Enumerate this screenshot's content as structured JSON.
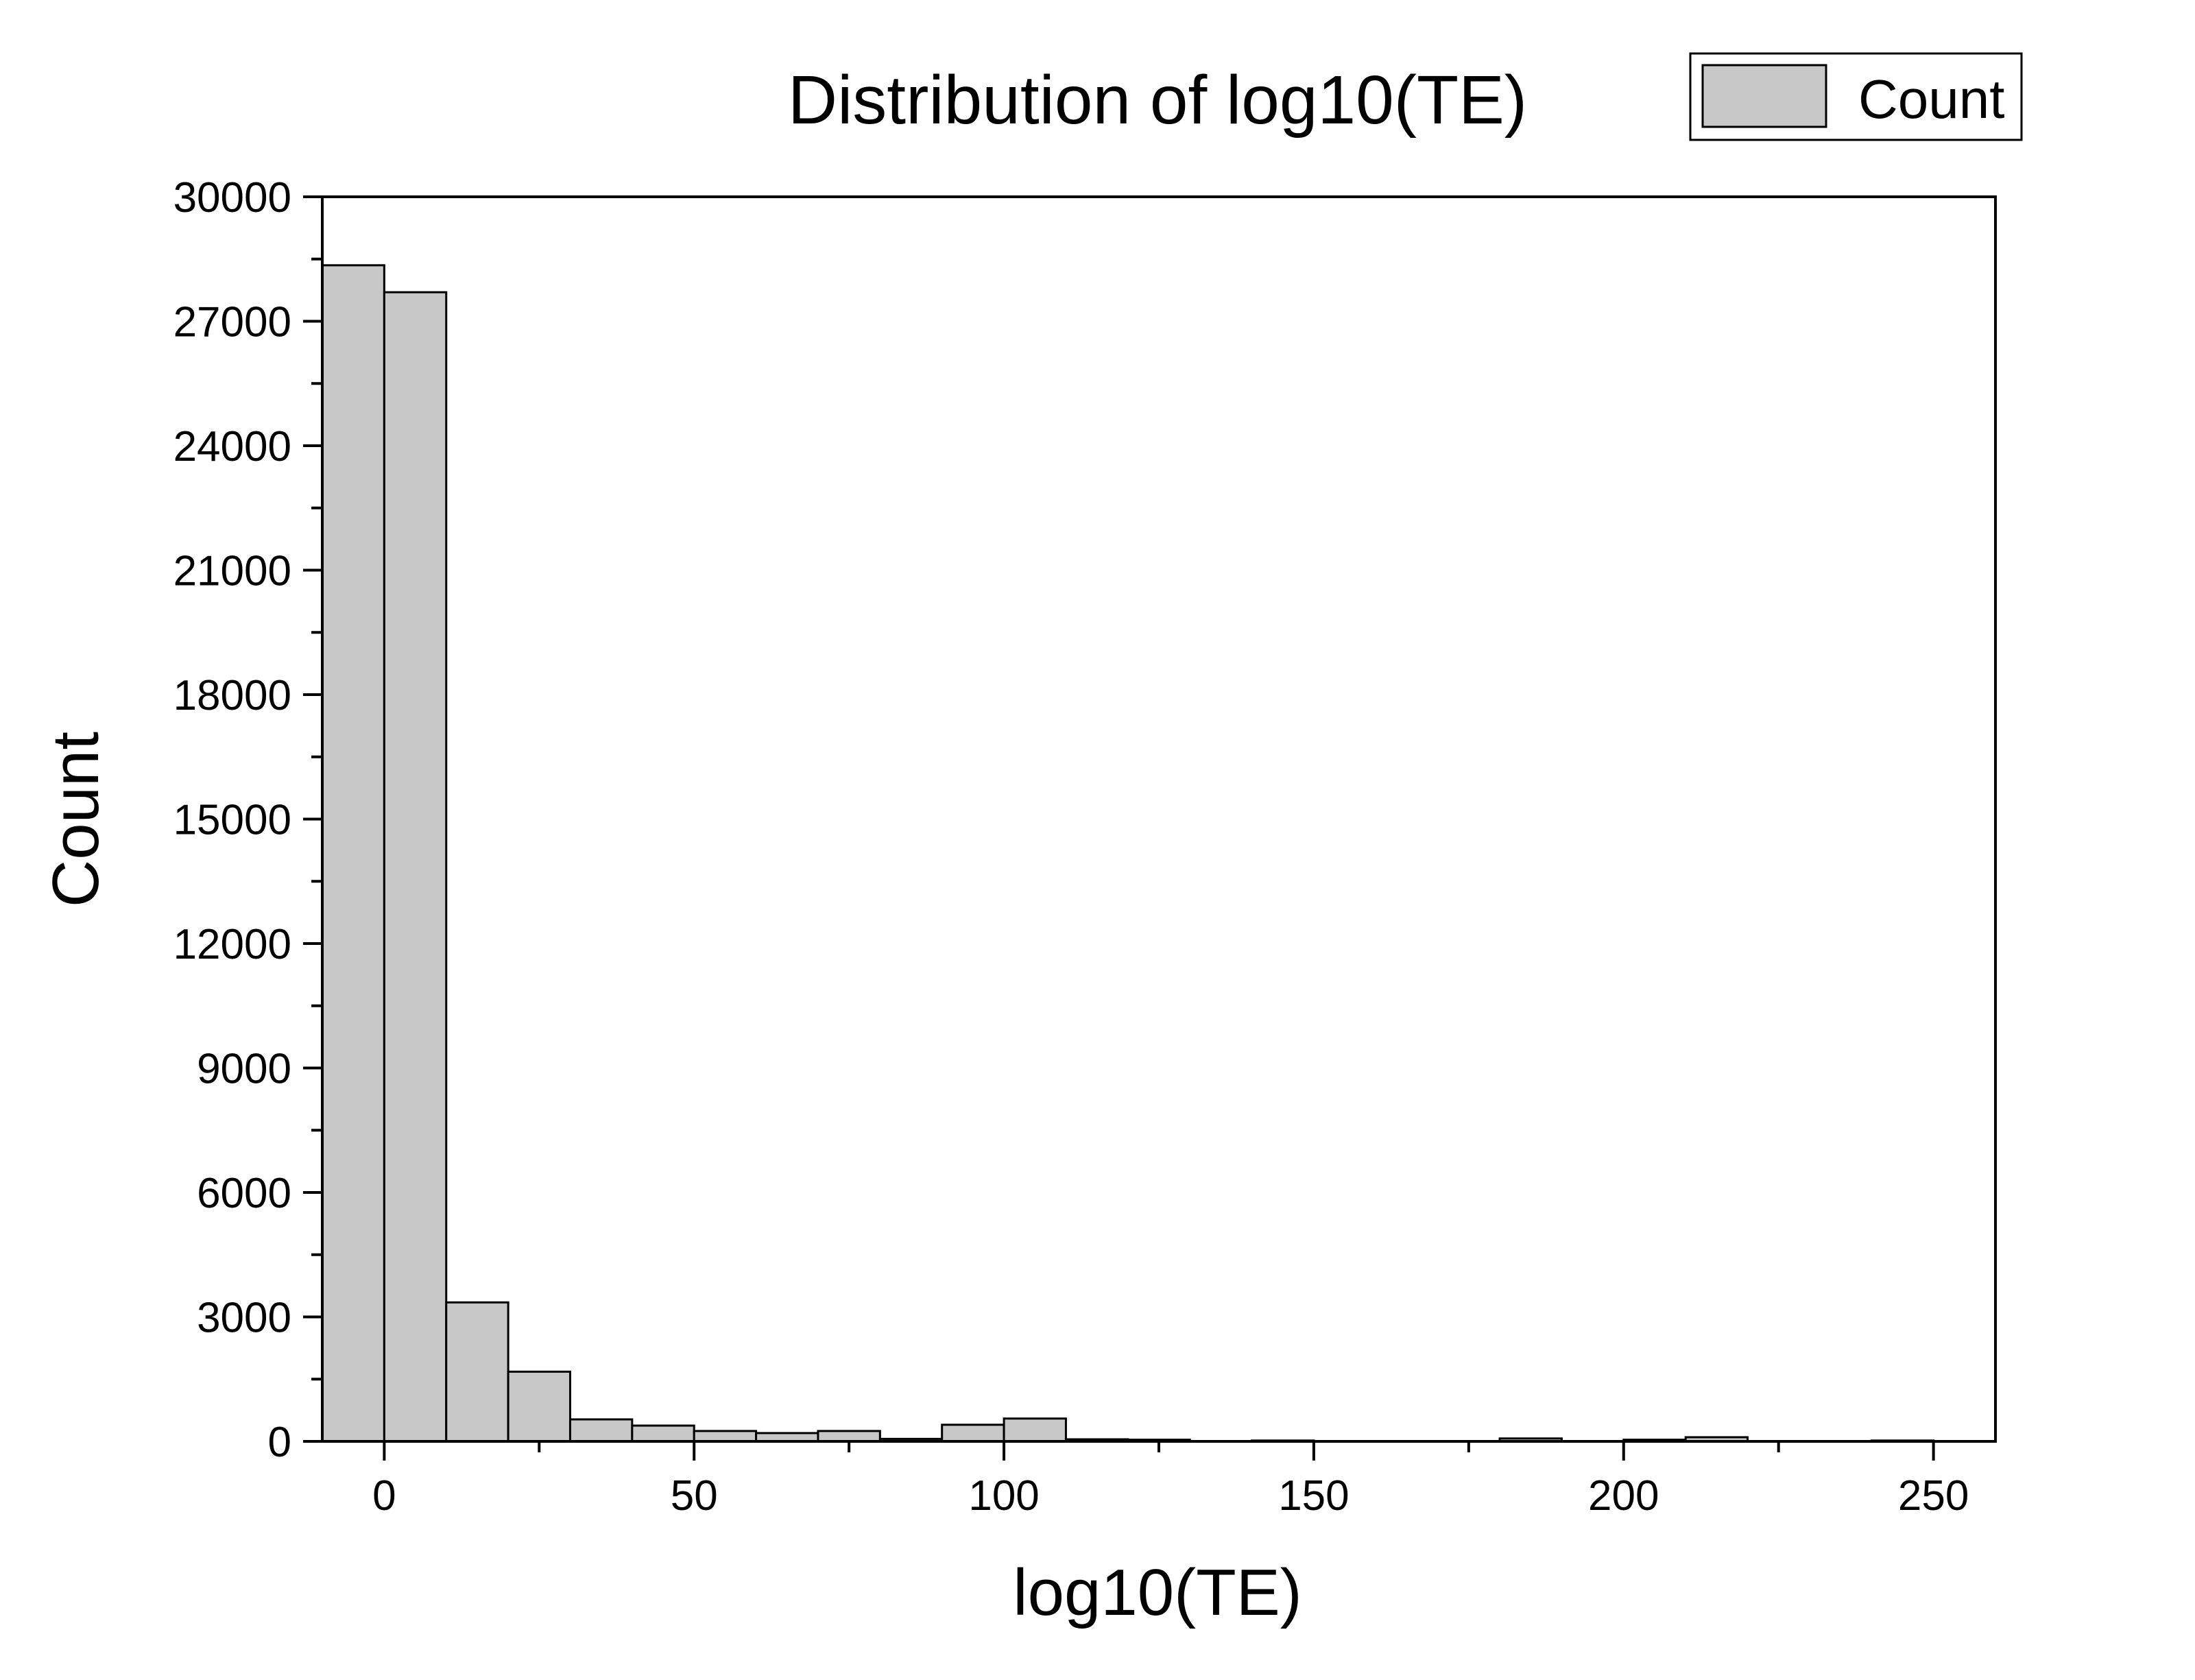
{
  "chart_data": {
    "type": "bar",
    "title": "Distribution of log10(TE)",
    "xlabel": "log10(TE)",
    "ylabel": "Count",
    "xlim": [
      -10,
      260
    ],
    "ylim": [
      0,
      30000
    ],
    "x_ticks": [
      0,
      50,
      100,
      150,
      200,
      250
    ],
    "y_ticks": [
      0,
      3000,
      6000,
      9000,
      12000,
      15000,
      18000,
      21000,
      24000,
      27000,
      30000
    ],
    "grid": false,
    "legend": {
      "position": "top-right",
      "entries": [
        {
          "label": "Count",
          "color": "#c8c8c8"
        }
      ]
    },
    "bin_width": 10,
    "bins": [
      {
        "start": -10,
        "end": 0,
        "count": 28350
      },
      {
        "start": 0,
        "end": 10,
        "count": 27700
      },
      {
        "start": 10,
        "end": 20,
        "count": 3350
      },
      {
        "start": 20,
        "end": 30,
        "count": 1680
      },
      {
        "start": 30,
        "end": 40,
        "count": 530
      },
      {
        "start": 40,
        "end": 50,
        "count": 380
      },
      {
        "start": 50,
        "end": 60,
        "count": 250
      },
      {
        "start": 60,
        "end": 70,
        "count": 200
      },
      {
        "start": 70,
        "end": 80,
        "count": 250
      },
      {
        "start": 80,
        "end": 90,
        "count": 60
      },
      {
        "start": 90,
        "end": 100,
        "count": 400
      },
      {
        "start": 100,
        "end": 110,
        "count": 550
      },
      {
        "start": 110,
        "end": 120,
        "count": 50
      },
      {
        "start": 120,
        "end": 130,
        "count": 40
      },
      {
        "start": 130,
        "end": 140,
        "count": 0
      },
      {
        "start": 140,
        "end": 150,
        "count": 20
      },
      {
        "start": 150,
        "end": 160,
        "count": 0
      },
      {
        "start": 160,
        "end": 170,
        "count": 0
      },
      {
        "start": 170,
        "end": 180,
        "count": 0
      },
      {
        "start": 180,
        "end": 190,
        "count": 70
      },
      {
        "start": 190,
        "end": 200,
        "count": 0
      },
      {
        "start": 200,
        "end": 210,
        "count": 40
      },
      {
        "start": 210,
        "end": 220,
        "count": 100
      },
      {
        "start": 220,
        "end": 230,
        "count": 0
      },
      {
        "start": 230,
        "end": 240,
        "count": 0
      },
      {
        "start": 240,
        "end": 250,
        "count": 20
      }
    ]
  }
}
